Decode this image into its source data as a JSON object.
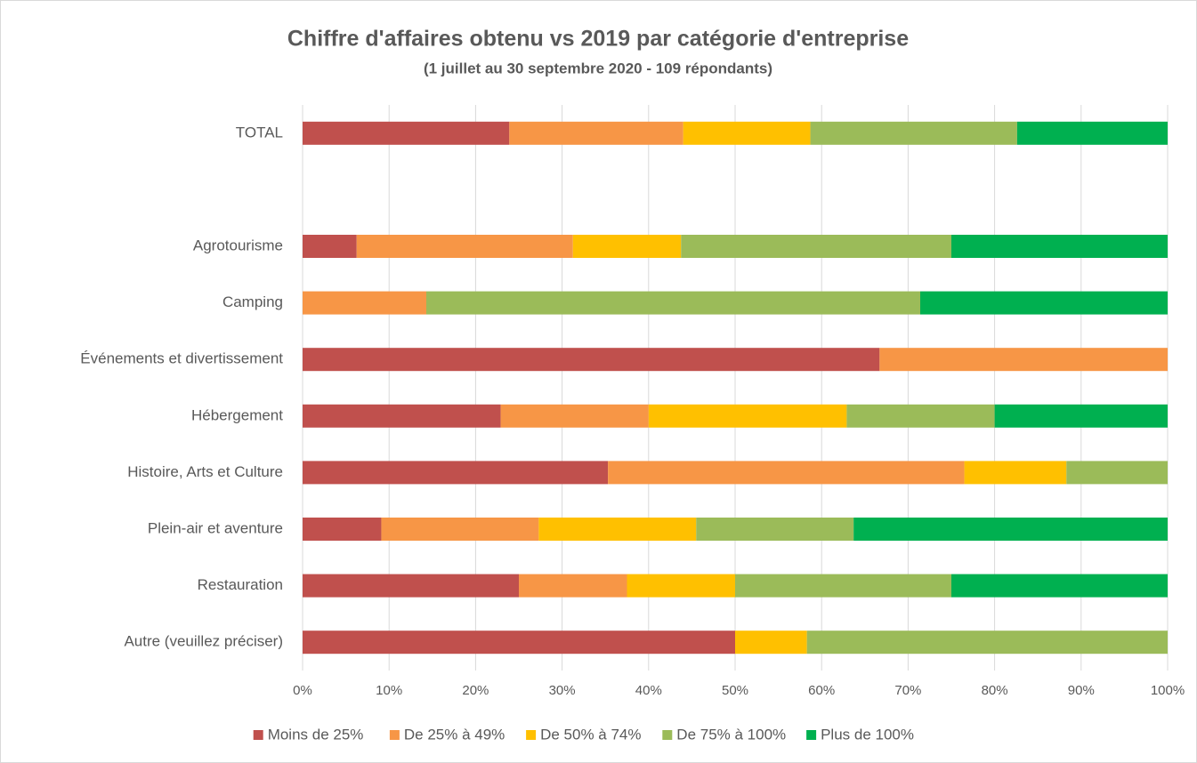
{
  "chart_data": {
    "type": "stacked-bar-horizontal",
    "title": "Chiffre d'affaires obtenu vs 2019 par catégorie d'entreprise",
    "subtitle": "(1 juillet au 30 septembre 2020 - 109 répondants)",
    "categories": [
      "TOTAL",
      null,
      "Agrotourisme",
      "Camping",
      "Événements et divertissement",
      "Hébergement",
      "Histoire, Arts et Culture",
      "Plein-air et aventure",
      "Restauration",
      "Autre (veuillez préciser)"
    ],
    "series": [
      {
        "name": "Moins de 25%",
        "color": "#c0504d",
        "values": [
          23.9,
          null,
          6.25,
          0,
          66.7,
          22.9,
          35.3,
          9.1,
          25,
          50
        ]
      },
      {
        "name": "De 25% à 49%",
        "color": "#f79646",
        "values": [
          20.1,
          null,
          25,
          14.3,
          33.3,
          17.1,
          41.2,
          18.2,
          12.5,
          0
        ]
      },
      {
        "name": "De 50% à 74%",
        "color": "#ffc000",
        "values": [
          14.7,
          null,
          12.5,
          0,
          0,
          22.9,
          11.8,
          18.2,
          12.5,
          8.3
        ]
      },
      {
        "name": "De 75% à 100%",
        "color": "#9bbb59",
        "values": [
          23.9,
          null,
          31.25,
          57.1,
          0,
          17.1,
          11.7,
          18.2,
          25,
          41.7
        ]
      },
      {
        "name": "Plus de 100%",
        "color": "#00b050",
        "values": [
          17.4,
          null,
          25,
          28.6,
          0,
          20,
          0,
          36.3,
          25,
          0
        ]
      }
    ],
    "xlim": [
      0,
      100
    ],
    "xticks": [
      {
        "value": 0,
        "label": "0%"
      },
      {
        "value": 10,
        "label": "10%"
      },
      {
        "value": 20,
        "label": "20%"
      },
      {
        "value": 30,
        "label": "30%"
      },
      {
        "value": 40,
        "label": "40%"
      },
      {
        "value": 50,
        "label": "50%"
      },
      {
        "value": 60,
        "label": "60%"
      },
      {
        "value": 70,
        "label": "70%"
      },
      {
        "value": 80,
        "label": "80%"
      },
      {
        "value": 90,
        "label": "90%"
      },
      {
        "value": 100,
        "label": "100%"
      }
    ],
    "grid": true,
    "legend": "bottom"
  }
}
